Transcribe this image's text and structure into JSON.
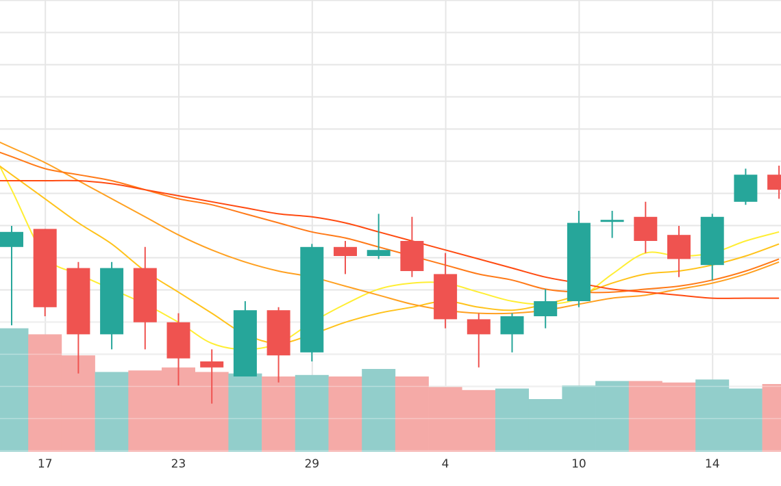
{
  "chart_data": {
    "type": "candlestick",
    "x_tick_labels": [
      "17",
      "23",
      "29",
      "4",
      "10",
      "14"
    ],
    "x_tick_index": [
      1,
      5,
      9,
      13,
      17,
      21
    ],
    "price_ylim": [
      5.0,
      20.0
    ],
    "volume_ylim": [
      0,
      100
    ],
    "grid": true,
    "colors": {
      "up": "#26a69a",
      "down": "#ef5350",
      "up_volume": "#92cecb",
      "down_volume": "#f5aaa7",
      "grid": "#e6e6e6",
      "ma_lines": [
        "#ffee33",
        "#ffc21a",
        "#ffa020",
        "#ff7a18",
        "#ff4a10"
      ]
    },
    "candles": [
      {
        "open": 11.8,
        "close": 12.3,
        "high": 12.5,
        "low": 9.2
      },
      {
        "open": 12.4,
        "close": 9.8,
        "high": 12.4,
        "low": 9.5
      },
      {
        "open": 11.1,
        "close": 8.9,
        "high": 11.3,
        "low": 7.6
      },
      {
        "open": 8.9,
        "close": 11.1,
        "high": 11.3,
        "low": 8.4
      },
      {
        "open": 11.1,
        "close": 9.3,
        "high": 11.8,
        "low": 8.4
      },
      {
        "open": 9.3,
        "close": 8.1,
        "high": 9.6,
        "low": 7.2
      },
      {
        "open": 8.0,
        "close": 7.8,
        "high": 8.4,
        "low": 6.6
      },
      {
        "open": 7.5,
        "close": 9.7,
        "high": 10.0,
        "low": 7.5
      },
      {
        "open": 9.7,
        "close": 8.2,
        "high": 9.8,
        "low": 7.3
      },
      {
        "open": 8.3,
        "close": 11.8,
        "high": 11.9,
        "low": 8.0
      },
      {
        "open": 11.8,
        "close": 11.5,
        "high": 12.0,
        "low": 10.9
      },
      {
        "open": 11.5,
        "close": 11.7,
        "high": 12.9,
        "low": 11.4
      },
      {
        "open": 12.0,
        "close": 11.0,
        "high": 12.8,
        "low": 10.8
      },
      {
        "open": 10.9,
        "close": 9.4,
        "high": 11.6,
        "low": 9.1
      },
      {
        "open": 9.4,
        "close": 8.9,
        "high": 9.6,
        "low": 7.8
      },
      {
        "open": 8.9,
        "close": 9.5,
        "high": 9.6,
        "low": 8.3
      },
      {
        "open": 9.5,
        "close": 10.0,
        "high": 10.4,
        "low": 9.1
      },
      {
        "open": 10.0,
        "close": 12.6,
        "high": 13.0,
        "low": 9.8
      },
      {
        "open": 12.7,
        "close": 12.7,
        "high": 13.0,
        "low": 12.1
      },
      {
        "open": 12.8,
        "close": 12.0,
        "high": 13.3,
        "low": 11.6
      },
      {
        "open": 12.2,
        "close": 11.4,
        "high": 12.5,
        "low": 10.8
      },
      {
        "open": 11.2,
        "close": 12.8,
        "high": 12.9,
        "low": 10.7
      },
      {
        "open": 13.3,
        "close": 14.2,
        "high": 14.4,
        "low": 13.2
      },
      {
        "open": 14.2,
        "close": 13.7,
        "high": 14.5,
        "low": 13.4
      }
    ],
    "volume": [
      82,
      78,
      64,
      53,
      54,
      56,
      53,
      52,
      50,
      51,
      50,
      55,
      50,
      43,
      41,
      42,
      35,
      44,
      47,
      47,
      46,
      48,
      42,
      45
    ],
    "ma_series": [
      {
        "values": [
          13.7,
          11.5,
          10.9,
          10.4,
          9.9,
          9.3,
          8.6,
          8.4,
          8.6,
          9.3,
          9.9,
          10.4,
          10.6,
          10.6,
          10.3,
          10.0,
          9.9,
          10.1,
          10.9,
          11.6,
          11.5,
          11.6,
          12.0,
          12.3
        ]
      },
      {
        "values": [
          14.2,
          13.4,
          12.6,
          11.9,
          11.0,
          10.3,
          9.6,
          8.9,
          8.6,
          8.9,
          9.3,
          9.6,
          9.8,
          10.0,
          9.8,
          9.7,
          9.9,
          10.2,
          10.6,
          10.9,
          11.0,
          11.2,
          11.5,
          11.9
        ]
      },
      {
        "values": [
          15.1,
          14.6,
          14.0,
          13.4,
          12.8,
          12.2,
          11.7,
          11.3,
          11.0,
          10.8,
          10.5,
          10.2,
          9.9,
          9.7,
          9.6,
          9.6,
          9.7,
          9.9,
          10.1,
          10.2,
          10.4,
          10.6,
          10.9,
          11.3
        ]
      },
      {
        "values": [
          14.8,
          14.4,
          14.2,
          14.0,
          13.7,
          13.4,
          13.2,
          12.9,
          12.6,
          12.3,
          12.1,
          11.8,
          11.5,
          11.2,
          10.9,
          10.7,
          10.4,
          10.3,
          10.3,
          10.4,
          10.5,
          10.7,
          11.0,
          11.4
        ]
      },
      {
        "values": [
          14.0,
          14.0,
          14.0,
          13.9,
          13.7,
          13.5,
          13.3,
          13.1,
          12.9,
          12.8,
          12.6,
          12.3,
          12.0,
          11.7,
          11.4,
          11.1,
          10.8,
          10.6,
          10.4,
          10.3,
          10.2,
          10.1,
          10.1,
          10.1
        ]
      }
    ]
  }
}
